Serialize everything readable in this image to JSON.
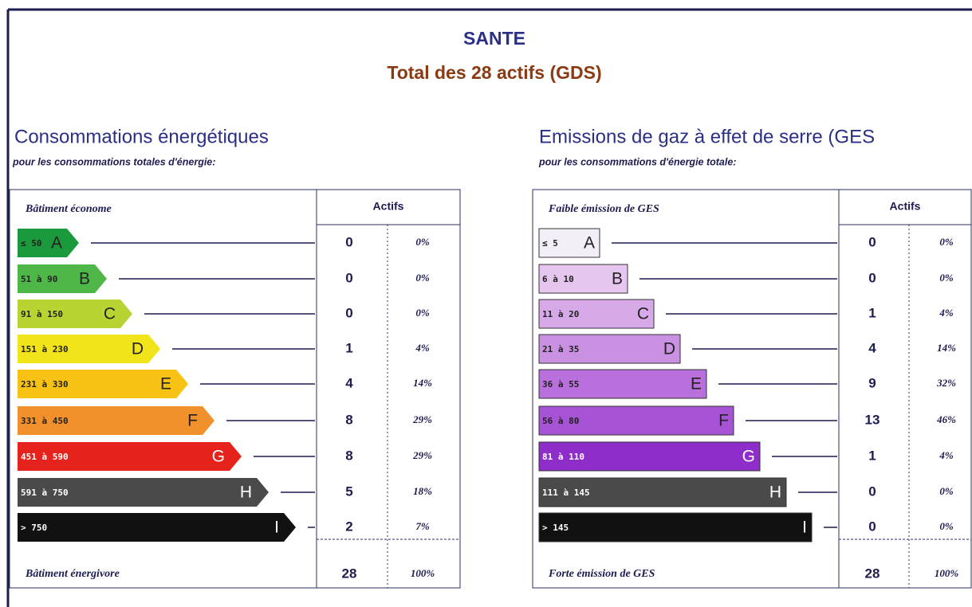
{
  "title": "SANTE",
  "subtitle": "Total des 28 actifs (GDS)",
  "panels": [
    {
      "heading": "Consommations énergétiques",
      "subheading": "pour les consommations totales d'énergie:",
      "top_label": "Bâtiment économe",
      "column_header": "Actifs",
      "bottom_label": "Bâtiment énergivore",
      "rows": [
        {
          "range": "≤ 50",
          "letter": "A",
          "count": 0,
          "percent": "0%"
        },
        {
          "range": "51 à 90",
          "letter": "B",
          "count": 0,
          "percent": "0%"
        },
        {
          "range": "91 à 150",
          "letter": "C",
          "count": 0,
          "percent": "0%"
        },
        {
          "range": "151 à 230",
          "letter": "D",
          "count": 1,
          "percent": "4%"
        },
        {
          "range": "231 à 330",
          "letter": "E",
          "count": 4,
          "percent": "14%"
        },
        {
          "range": "331 à 450",
          "letter": "F",
          "count": 8,
          "percent": "29%"
        },
        {
          "range": "451 à 590",
          "letter": "G",
          "count": 8,
          "percent": "29%"
        },
        {
          "range": "591 à 750",
          "letter": "H",
          "count": 5,
          "percent": "18%"
        },
        {
          "range": "> 750",
          "letter": "I",
          "count": 2,
          "percent": "7%"
        }
      ],
      "total_count": 28,
      "total_percent": "100%"
    },
    {
      "heading": "Emissions de gaz à effet de serre (GES",
      "subheading": "pour les consommations d'énergie totale:",
      "top_label": "Faible émission de GES",
      "column_header": "Actifs",
      "bottom_label": "Forte émission de GES",
      "rows": [
        {
          "range": "≤ 5",
          "letter": "A",
          "count": 0,
          "percent": "0%"
        },
        {
          "range": "6 à 10",
          "letter": "B",
          "count": 0,
          "percent": "0%"
        },
        {
          "range": "11 à 20",
          "letter": "C",
          "count": 1,
          "percent": "4%"
        },
        {
          "range": "21 à 35",
          "letter": "D",
          "count": 4,
          "percent": "14%"
        },
        {
          "range": "36 à 55",
          "letter": "E",
          "count": 9,
          "percent": "32%"
        },
        {
          "range": "56 à 80",
          "letter": "F",
          "count": 13,
          "percent": "46%"
        },
        {
          "range": "81 à 110",
          "letter": "G",
          "count": 1,
          "percent": "4%"
        },
        {
          "range": "111 à 145",
          "letter": "H",
          "count": 0,
          "percent": "0%"
        },
        {
          "range": "> 145",
          "letter": "I",
          "count": 0,
          "percent": "0%"
        }
      ],
      "total_count": 28,
      "total_percent": "100%"
    }
  ]
}
